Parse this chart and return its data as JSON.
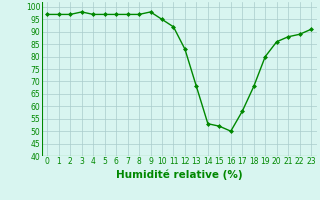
{
  "x": [
    0,
    1,
    2,
    3,
    4,
    5,
    6,
    7,
    8,
    9,
    10,
    11,
    12,
    13,
    14,
    15,
    16,
    17,
    18,
    19,
    20,
    21,
    22,
    23
  ],
  "y": [
    97,
    97,
    97,
    98,
    97,
    97,
    97,
    97,
    97,
    98,
    95,
    92,
    83,
    68,
    53,
    52,
    50,
    58,
    68,
    80,
    86,
    88,
    89,
    91
  ],
  "line_color": "#008800",
  "marker": "D",
  "marker_size": 2.0,
  "bg_color": "#d8f5f0",
  "grid_color": "#aacccc",
  "xlabel": "Humidité relative (%)",
  "xlabel_color": "#008800",
  "ylim": [
    40,
    102
  ],
  "xlim": [
    -0.5,
    23.5
  ],
  "yticks": [
    40,
    45,
    50,
    55,
    60,
    65,
    70,
    75,
    80,
    85,
    90,
    95,
    100
  ],
  "xticks": [
    0,
    1,
    2,
    3,
    4,
    5,
    6,
    7,
    8,
    9,
    10,
    11,
    12,
    13,
    14,
    15,
    16,
    17,
    18,
    19,
    20,
    21,
    22,
    23
  ],
  "tick_label_size": 5.5,
  "xlabel_fontsize": 7.5,
  "linewidth": 1.0
}
